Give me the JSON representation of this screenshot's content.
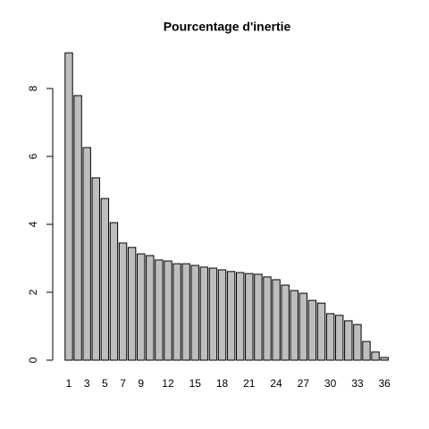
{
  "chart_data": {
    "type": "bar",
    "title": "Pourcentage d'inertie",
    "categories": [
      "1",
      null,
      "3",
      null,
      "5",
      null,
      "7",
      null,
      "9",
      null,
      null,
      "12",
      null,
      null,
      "15",
      null,
      null,
      "18",
      null,
      null,
      "21",
      null,
      null,
      "24",
      null,
      null,
      "27",
      null,
      null,
      "30",
      null,
      null,
      "33",
      null,
      null,
      "36"
    ],
    "values": [
      9.05,
      7.79,
      6.26,
      5.37,
      4.76,
      4.05,
      3.45,
      3.32,
      3.13,
      3.08,
      2.95,
      2.92,
      2.84,
      2.84,
      2.79,
      2.74,
      2.71,
      2.66,
      2.61,
      2.58,
      2.55,
      2.53,
      2.45,
      2.37,
      2.21,
      2.05,
      1.97,
      1.76,
      1.68,
      1.37,
      1.32,
      1.16,
      1.05,
      0.55,
      0.24,
      0.08
    ],
    "color": "#bebebe",
    "ylim": [
      0,
      9.2
    ],
    "yticks": [
      0,
      2,
      4,
      6,
      8
    ],
    "grid": false
  }
}
